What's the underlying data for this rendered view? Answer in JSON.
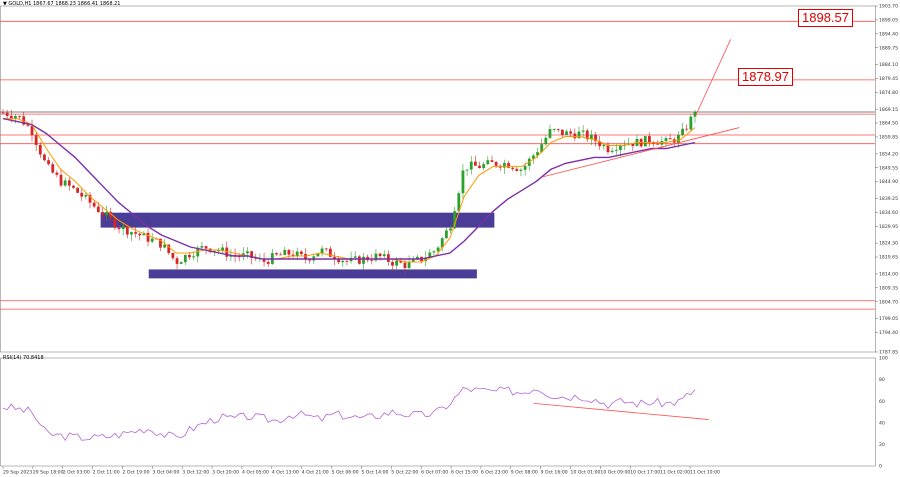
{
  "header": {
    "main_title": "▼ GOLD,H1  1867.67  1868.23  1866.41  1868.21",
    "rsi_title": "RSI(14) 70.8418"
  },
  "colors": {
    "bull": "#2ca02c",
    "bear": "#d62728",
    "ema_fast": "#ff9900",
    "ema_slow": "#7b2fa8",
    "zone": "#3b2d8f",
    "hline": "#ff4d4d",
    "trend": "#ff4d4d",
    "rsi": "#b266d6",
    "current_price_line": "#555555"
  },
  "chart_data": [
    {
      "type": "candlestick",
      "title": "▼ GOLD,H1  1867.67  1868.23  1866.41  1868.21",
      "symbol": "GOLD",
      "timeframe": "H1",
      "last_bar": {
        "open": 1867.67,
        "high": 1868.23,
        "low": 1866.41,
        "close": 1868.21
      },
      "ylim": [
        1787.85,
        1903.7
      ],
      "y_ticks": [
        "1903.70",
        "1899.05",
        "1894.40",
        "1889.75",
        "1884.10",
        "1879.45",
        "1874.80",
        "1869.15",
        "1864.50",
        "1859.85",
        "1854.20",
        "1849.55",
        "1844.90",
        "1839.25",
        "1834.60",
        "1829.95",
        "1824.30",
        "1819.65",
        "1814.00",
        "1809.35",
        "1804.70",
        "1799.05",
        "1794.40",
        "1787.85"
      ],
      "x_ticks": [
        "29 Sep 2023",
        "29 Sep 18:00",
        "2 Oct 03:00",
        "2 Oct 11:00",
        "2 Oct 19:00",
        "3 Oct 04:00",
        "3 Oct 12:00",
        "3 Oct 20:00",
        "4 Oct 05:00",
        "4 Oct 13:00",
        "4 Oct 21:00",
        "5 Oct 06:00",
        "5 Oct 14:00",
        "5 Oct 22:00",
        "6 Oct 07:00",
        "6 Oct 15:00",
        "6 Oct 23:00",
        "9 Oct 08:00",
        "9 Oct 16:00",
        "10 Oct 01:00",
        "10 Oct 09:00",
        "10 Oct 17:00",
        "11 Oct 02:00",
        "11 Oct 10:00"
      ],
      "close_profile": [
        1868,
        1867,
        1862,
        1850,
        1845,
        1842,
        1838,
        1834,
        1830,
        1828,
        1826,
        1824,
        1818,
        1821,
        1823,
        1822,
        1820,
        1820,
        1818,
        1820,
        1821,
        1819,
        1822,
        1820,
        1818,
        1819,
        1820,
        1818,
        1817,
        1819,
        1822,
        1830,
        1850,
        1850,
        1851,
        1851,
        1849,
        1855,
        1862,
        1861,
        1861,
        1859,
        1856,
        1858,
        1858,
        1859,
        1858,
        1860,
        1868
      ],
      "emas": [
        {
          "name": "EMA fast",
          "values": [
            1866,
            1866,
            1864,
            1856,
            1849,
            1845,
            1840,
            1836,
            1832,
            1829,
            1827,
            1825,
            1821,
            1821,
            1822,
            1822,
            1821,
            1820,
            1819,
            1819,
            1820,
            1820,
            1821,
            1820,
            1819,
            1819,
            1819,
            1819,
            1818,
            1818,
            1820,
            1826,
            1840,
            1847,
            1850,
            1850,
            1850,
            1853,
            1858,
            1860,
            1860,
            1859,
            1857,
            1857,
            1858,
            1858,
            1858,
            1859,
            1863
          ]
        },
        {
          "name": "EMA slow",
          "values": [
            1866,
            1865,
            1864,
            1861,
            1857,
            1853,
            1848,
            1843,
            1838,
            1834,
            1830,
            1827,
            1825,
            1823,
            1822,
            1821,
            1820,
            1820,
            1819,
            1819,
            1819,
            1819,
            1819,
            1819,
            1819,
            1819,
            1819,
            1819,
            1819,
            1819,
            1820,
            1821,
            1825,
            1830,
            1835,
            1839,
            1842,
            1845,
            1849,
            1851,
            1852,
            1853,
            1853,
            1854,
            1855,
            1856,
            1856,
            1857,
            1858
          ]
        }
      ],
      "horizontal_levels": [
        1898.57,
        1878.97,
        1867.5,
        1860.5,
        1857.6,
        1805.0,
        1802.2
      ],
      "current_price": 1868.21,
      "level_labels": [
        {
          "text": "1898.57",
          "value": 1898.57
        },
        {
          "text": "1878.97",
          "value": 1878.97
        }
      ],
      "zones": [
        {
          "x_from": 0.115,
          "x_to": 0.565,
          "y_from": 1829.5,
          "y_to": 1834.5
        },
        {
          "x_from": 0.17,
          "x_to": 0.545,
          "y_from": 1812.5,
          "y_to": 1815.5
        }
      ],
      "trend_lines": [
        {
          "x1": 0.62,
          "y1": 1846.5,
          "x2": 0.845,
          "y2": 1863.0
        },
        {
          "x1": 0.795,
          "y1": 1867.0,
          "x2": 0.835,
          "y2": 1892.5
        }
      ]
    },
    {
      "type": "line",
      "title": "RSI(14) 70.8418",
      "ylim": [
        0,
        100
      ],
      "y_ticks": [
        "100",
        "80",
        "60",
        "40",
        "20",
        "0"
      ],
      "profile": [
        55,
        53,
        50,
        30,
        28,
        27,
        26,
        27,
        29,
        32,
        35,
        30,
        26,
        34,
        40,
        45,
        44,
        46,
        44,
        42,
        48,
        47,
        43,
        48,
        46,
        44,
        47,
        50,
        48,
        47,
        49,
        58,
        72,
        70,
        69,
        70,
        68,
        73,
        66,
        64,
        65,
        62,
        57,
        60,
        58,
        59,
        58,
        60,
        71
      ],
      "trend_line": {
        "x1": 0.61,
        "y1": 58,
        "x2": 0.81,
        "y2": 43
      }
    }
  ]
}
